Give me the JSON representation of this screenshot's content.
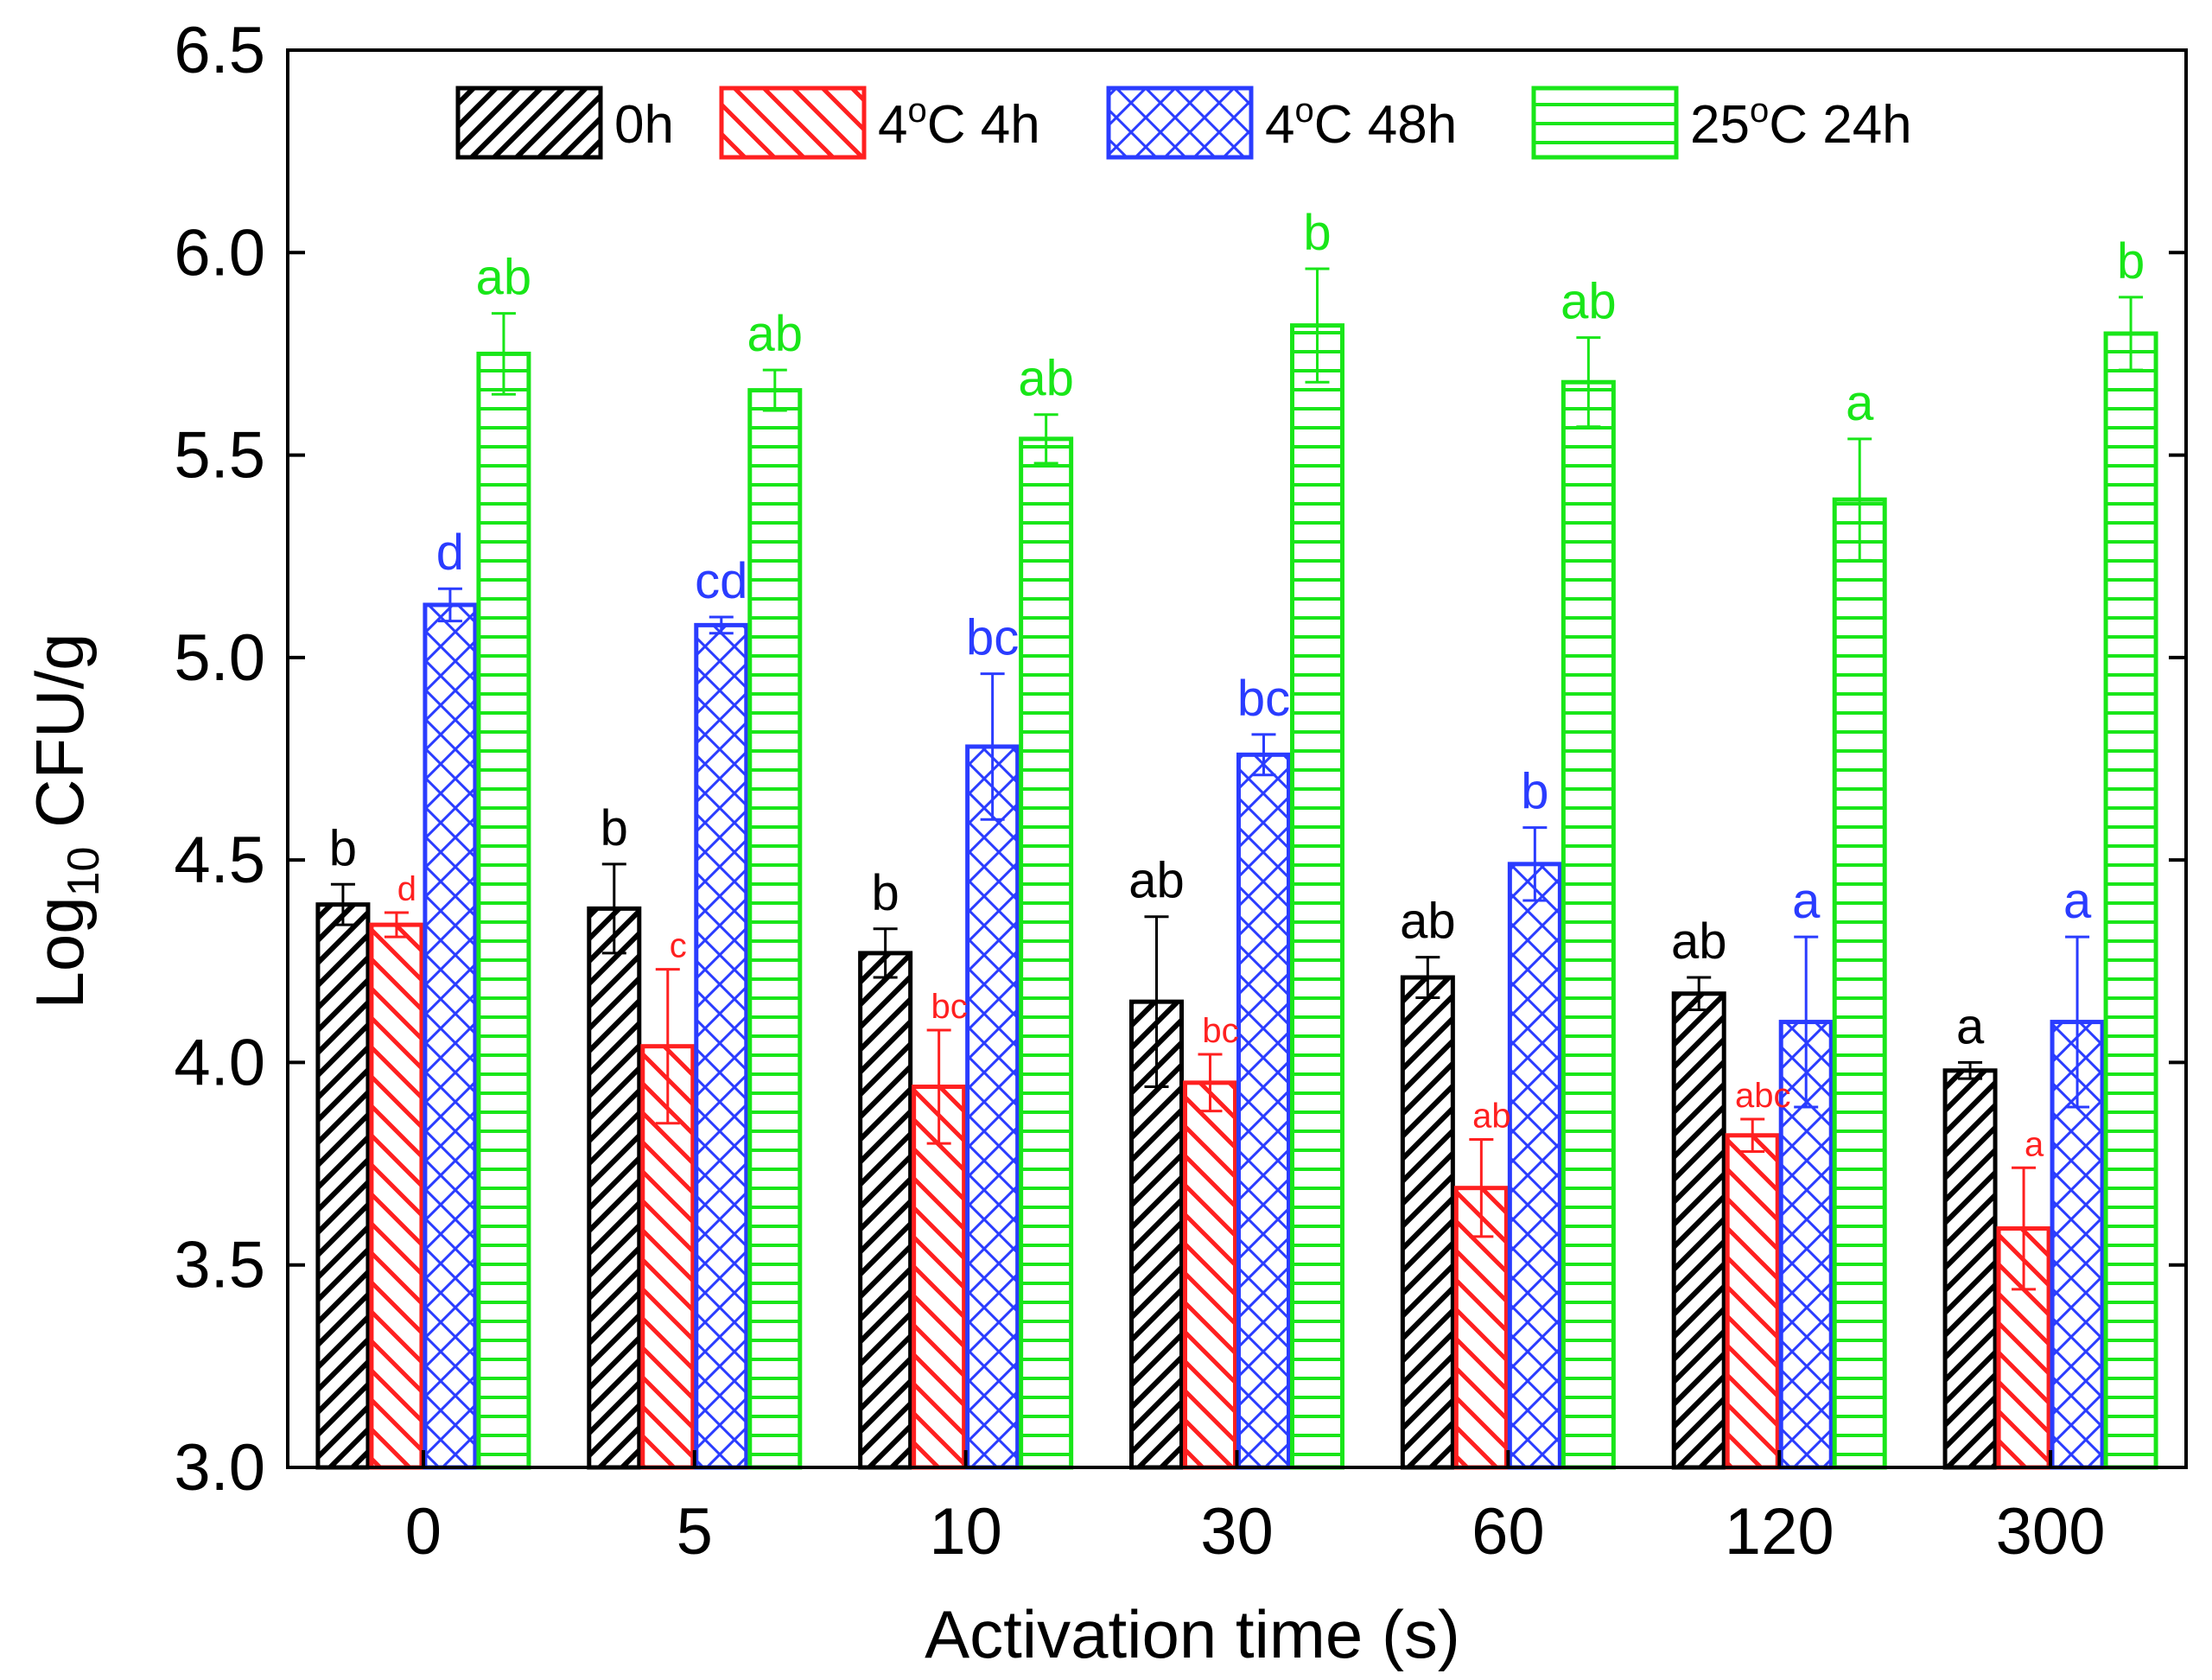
{
  "chart_data": {
    "type": "bar",
    "xlabel": "Activation time (s)",
    "ylabel": {
      "base": "Log",
      "sub": "10",
      "rest": " CFU/g"
    },
    "ylim": [
      3.0,
      6.5
    ],
    "yticks": [
      "3.0",
      "3.5",
      "4.0",
      "4.5",
      "5.0",
      "5.5",
      "6.0",
      "6.5"
    ],
    "categories": [
      "0",
      "5",
      "10",
      "30",
      "60",
      "120",
      "300"
    ],
    "legend_position": "top",
    "grid": false,
    "series": [
      {
        "name": "0h",
        "name_parts": {
          "pre": "0h",
          "sup": "",
          "post": ""
        },
        "color": "#000000",
        "pattern": "diagonal-up",
        "values": [
          4.39,
          4.38,
          4.27,
          4.15,
          4.21,
          4.17,
          3.98
        ],
        "errors": [
          0.05,
          0.11,
          0.06,
          0.21,
          0.05,
          0.04,
          0.02
        ],
        "letters": [
          "b",
          "b",
          "b",
          "ab",
          "ab",
          "ab",
          "a"
        ]
      },
      {
        "name": "4oC 4h",
        "name_parts": {
          "pre": "4",
          "sup": "o",
          "post": "C 4h"
        },
        "color": "#ff2020",
        "pattern": "diagonal-down",
        "values": [
          4.34,
          4.04,
          3.94,
          3.95,
          3.69,
          3.82,
          3.59
        ],
        "errors": [
          0.03,
          0.19,
          0.14,
          0.07,
          0.12,
          0.04,
          0.15
        ],
        "letters": [
          "d",
          "c",
          "bc",
          "bc",
          "ab",
          "abc",
          "a"
        ]
      },
      {
        "name": "4oC 48h",
        "name_parts": {
          "pre": "4",
          "sup": "o",
          "post": "C 48h"
        },
        "color": "#2a3cff",
        "pattern": "crosshatch",
        "values": [
          5.13,
          5.08,
          4.78,
          4.76,
          4.49,
          4.1,
          4.1
        ],
        "errors": [
          0.04,
          0.02,
          0.18,
          0.05,
          0.09,
          0.21,
          0.21
        ],
        "letters": [
          "d",
          "cd",
          "bc",
          "bc",
          "b",
          "a",
          "a"
        ]
      },
      {
        "name": "25oC 24h",
        "name_parts": {
          "pre": "25",
          "sup": "o",
          "post": "C 24h"
        },
        "color": "#19e619",
        "pattern": "horizontal",
        "values": [
          5.75,
          5.66,
          5.54,
          5.82,
          5.68,
          5.39,
          5.8
        ],
        "errors": [
          0.1,
          0.05,
          0.06,
          0.14,
          0.11,
          0.15,
          0.09
        ],
        "letters": [
          "ab",
          "ab",
          "ab",
          "b",
          "ab",
          "a",
          "b"
        ]
      }
    ]
  }
}
